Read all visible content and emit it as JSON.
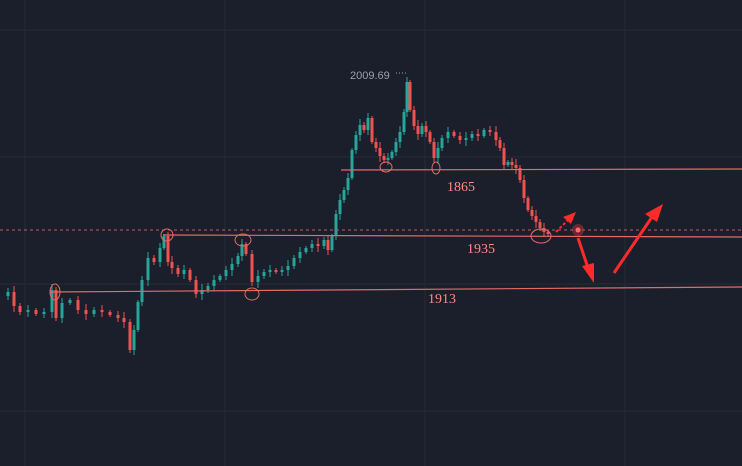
{
  "chart_data": {
    "type": "candlestick",
    "peak_label": "2009.69",
    "colors": {
      "background": "#1b1f2b",
      "grid": "#252b38",
      "up": "#26a69a",
      "down": "#ef5350",
      "level_line": "#e46a66",
      "level_text": "#ff8a86",
      "price_dotted": "#c45a60",
      "arrow": "#ff2b2b",
      "peak_text": "#9aa0ac"
    },
    "levels": [
      {
        "label": "1865"
      },
      {
        "label": "1935"
      },
      {
        "label": "1913"
      }
    ],
    "annotations": {
      "circles": 7,
      "arrows": [
        "up-small",
        "down",
        "up"
      ]
    }
  }
}
